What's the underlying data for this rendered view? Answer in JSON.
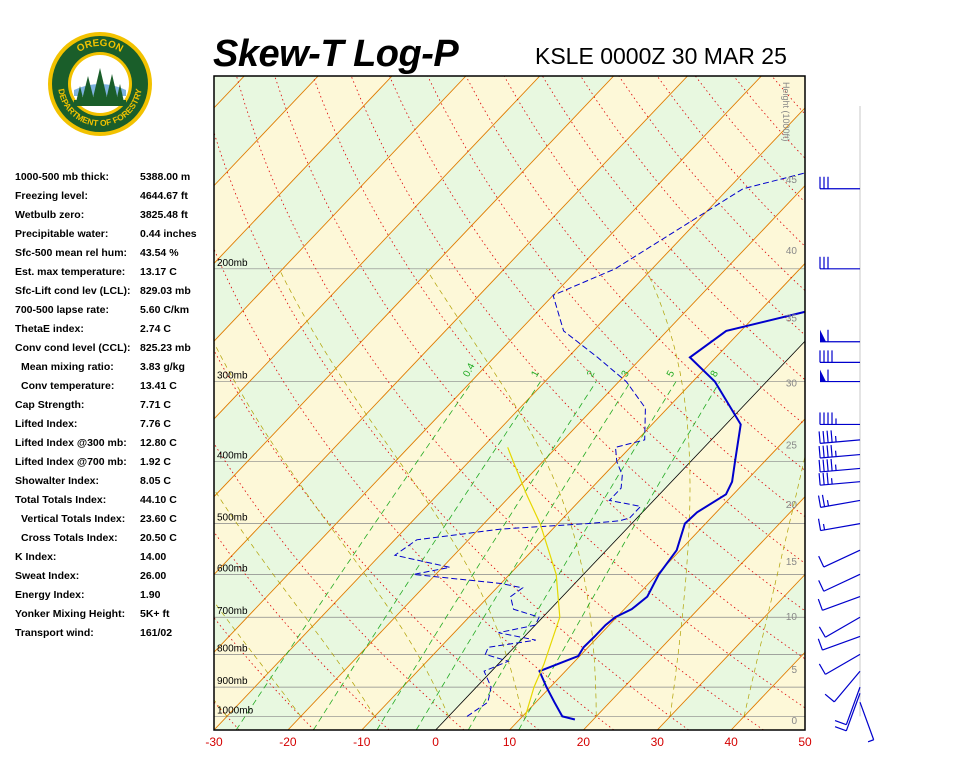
{
  "header": {
    "title": "Skew-T Log-P",
    "station_line": "KSLE 0000Z 30 MAR 25"
  },
  "logo": {
    "top_text": "OREGON",
    "bottom_text": "DEPARTMENT OF FORESTRY",
    "ring_color": "#1a5e2a",
    "accent_color": "#f2c200"
  },
  "indices": [
    {
      "label": "1000-500 mb thick:",
      "value": "5388.00 m"
    },
    {
      "label": "Freezing level:",
      "value": "4644.67 ft"
    },
    {
      "label": "Wetbulb zero:",
      "value": "3825.48 ft"
    },
    {
      "label": "Precipitable water:",
      "value": "0.44 inches"
    },
    {
      "label": "Sfc-500 mean rel hum:",
      "value": "43.54 %"
    },
    {
      "label": "Est. max temperature:",
      "value": "13.17 C"
    },
    {
      "label": "Sfc-Lift cond lev (LCL):",
      "value": "829.03 mb"
    },
    {
      "label": "700-500 lapse rate:",
      "value": "5.60 C/km"
    },
    {
      "label": "ThetaE index:",
      "value": "2.74 C"
    },
    {
      "label": "Conv cond level (CCL):",
      "value": "825.23 mb"
    },
    {
      "label": "Mean mixing ratio:",
      "value": "3.83 g/kg",
      "indent": true
    },
    {
      "label": "Conv temperature:",
      "value": "13.41 C",
      "indent": true
    },
    {
      "label": "Cap Strength:",
      "value": "7.71 C"
    },
    {
      "label": "Lifted Index:",
      "value": "7.76 C"
    },
    {
      "label": "Lifted Index @300 mb:",
      "value": "12.80 C"
    },
    {
      "label": "Lifted Index @700 mb:",
      "value": "1.92 C"
    },
    {
      "label": "Showalter Index:",
      "value": "8.05 C"
    },
    {
      "label": "Total Totals Index:",
      "value": "44.10 C"
    },
    {
      "label": "Vertical Totals Index:",
      "value": "23.60 C",
      "indent": true
    },
    {
      "label": "Cross Totals Index:",
      "value": "20.50 C",
      "indent": true
    },
    {
      "label": "K Index:",
      "value": "14.00"
    },
    {
      "label": "Sweat Index:",
      "value": "26.00"
    },
    {
      "label": "Energy Index:",
      "value": "1.90"
    },
    {
      "label": "Yonker Mixing Height:",
      "value": "5K+ ft"
    },
    {
      "label": "Transport wind:",
      "value": "161/02"
    }
  ],
  "chart_data": {
    "type": "line",
    "title": "Skew-T Log-P",
    "xlabel": "",
    "ylabel": "",
    "x_unit": "C",
    "xlim": [
      -30,
      50
    ],
    "ylim_pressure_mb": [
      1050,
      100
    ],
    "x_ticks": [
      -30,
      -20,
      -10,
      0,
      10,
      20,
      30,
      40,
      50
    ],
    "pressure_levels": [
      1000,
      900,
      800,
      700,
      600,
      500,
      400,
      300,
      200
    ],
    "pressure_level_labels": [
      "1000mb",
      "900mb",
      "800mb",
      "700mb",
      "600mb",
      "500mb",
      "400mb",
      "300mb",
      "200mb"
    ],
    "height_axis_label": "Height (1000ft)",
    "height_ticks_kft": [
      0,
      5,
      10,
      15,
      20,
      25,
      30,
      35,
      40,
      45,
      50
    ],
    "mixing_ratio_labels": [
      "0.4",
      "1",
      "2",
      "3",
      "5",
      "8"
    ],
    "mixing_ratio_values_gkg": [
      0.4,
      1,
      2,
      3,
      5,
      8
    ],
    "grid": true,
    "colors": {
      "temperature": "#0000cc",
      "dewpoint": "#0000cc",
      "parcel": "#e6d800",
      "isotherm": "#e07b00",
      "dry_adiabat": "#dd0000",
      "moist_adiabat": "#b0a000",
      "mixing_ratio": "#22aa22",
      "isobar": "#888888",
      "zero_isotherm": "#000000",
      "band_a": "#e8f8e0",
      "band_b": "#fdf8d8",
      "tick_label": "#d40000"
    },
    "series": [
      {
        "name": "",
        "kind": "temperature",
        "points": [
          [
            1011,
            17.5
          ],
          [
            1000,
            15.4
          ],
          [
            950,
            12.5
          ],
          [
            900,
            9.5
          ],
          [
            850,
            6.5
          ],
          [
            805,
            9.8
          ],
          [
            780,
            9.4
          ],
          [
            750,
            9.5
          ],
          [
            720,
            9.5
          ],
          [
            700,
            9.8
          ],
          [
            680,
            11.0
          ],
          [
            650,
            11.5
          ],
          [
            600,
            10.2
          ],
          [
            550,
            9.5
          ],
          [
            500,
            7.2
          ],
          [
            480,
            7.4
          ],
          [
            450,
            9.0
          ],
          [
            430,
            8.2
          ],
          [
            400,
            6.0
          ],
          [
            350,
            2.0
          ],
          [
            300,
            -7.0
          ],
          [
            275,
            -13.5
          ],
          [
            250,
            -12.0
          ],
          [
            230,
            -2.0
          ],
          [
            200,
            5.0
          ],
          [
            150,
            25.0
          ],
          [
            135,
            32.0
          ]
        ]
      },
      {
        "name": "",
        "kind": "dewpoint",
        "points": [
          [
            1000,
            2.5
          ],
          [
            950,
            3.5
          ],
          [
            900,
            2.0
          ],
          [
            850,
            -1.0
          ],
          [
            820,
            1.0
          ],
          [
            800,
            -3.0
          ],
          [
            780,
            -3.5
          ],
          [
            760,
            2.0
          ],
          [
            740,
            -4.0
          ],
          [
            720,
            0.0
          ],
          [
            700,
            -0.5
          ],
          [
            680,
            -5.0
          ],
          [
            650,
            -7.0
          ],
          [
            630,
            -6.5
          ],
          [
            620,
            -10.0
          ],
          [
            600,
            -23.0
          ],
          [
            585,
            -19.0
          ],
          [
            560,
            -28.0
          ],
          [
            530,
            -27.0
          ],
          [
            510,
            -17.0
          ],
          [
            500,
            -6.0
          ],
          [
            495,
            -2.0
          ],
          [
            490,
            -1.0
          ],
          [
            470,
            -1.0
          ],
          [
            460,
            -6.0
          ],
          [
            440,
            -6.0
          ],
          [
            420,
            -7.5
          ],
          [
            400,
            -10.0
          ],
          [
            380,
            -12.0
          ],
          [
            370,
            -9.0
          ],
          [
            330,
            -13.0
          ],
          [
            300,
            -19.0
          ],
          [
            275,
            -26.0
          ],
          [
            250,
            -34.0
          ],
          [
            220,
            -40.0
          ],
          [
            200,
            -35.0
          ],
          [
            150,
            -28.0
          ],
          [
            130,
            -12.0
          ]
        ]
      },
      {
        "name": "",
        "kind": "parcel",
        "points": [
          [
            1000,
            10.4
          ],
          [
            900,
            7.8
          ],
          [
            829,
            6.2
          ],
          [
            700,
            2.3
          ],
          [
            600,
            -3.7
          ],
          [
            500,
            -12.4
          ],
          [
            450,
            -18.0
          ],
          [
            400,
            -24.0
          ],
          [
            380,
            -26.6
          ]
        ]
      }
    ],
    "wind_barbs": [
      {
        "pressure_mb": 950,
        "direction_deg": 160,
        "speed_kt": 5
      },
      {
        "pressure_mb": 920,
        "direction_deg": 200,
        "speed_kt": 10
      },
      {
        "pressure_mb": 900,
        "direction_deg": 200,
        "speed_kt": 10
      },
      {
        "pressure_mb": 850,
        "direction_deg": 220,
        "speed_kt": 10
      },
      {
        "pressure_mb": 800,
        "direction_deg": 240,
        "speed_kt": 10
      },
      {
        "pressure_mb": 750,
        "direction_deg": 250,
        "speed_kt": 10
      },
      {
        "pressure_mb": 700,
        "direction_deg": 240,
        "speed_kt": 10
      },
      {
        "pressure_mb": 650,
        "direction_deg": 250,
        "speed_kt": 10
      },
      {
        "pressure_mb": 600,
        "direction_deg": 245,
        "speed_kt": 10
      },
      {
        "pressure_mb": 550,
        "direction_deg": 245,
        "speed_kt": 10
      },
      {
        "pressure_mb": 500,
        "direction_deg": 260,
        "speed_kt": 15
      },
      {
        "pressure_mb": 460,
        "direction_deg": 260,
        "speed_kt": 25
      },
      {
        "pressure_mb": 430,
        "direction_deg": 265,
        "speed_kt": 35
      },
      {
        "pressure_mb": 410,
        "direction_deg": 265,
        "speed_kt": 45
      },
      {
        "pressure_mb": 390,
        "direction_deg": 265,
        "speed_kt": 45
      },
      {
        "pressure_mb": 370,
        "direction_deg": 265,
        "speed_kt": 45
      },
      {
        "pressure_mb": 350,
        "direction_deg": 270,
        "speed_kt": 45
      },
      {
        "pressure_mb": 300,
        "direction_deg": 270,
        "speed_kt": 60
      },
      {
        "pressure_mb": 280,
        "direction_deg": 270,
        "speed_kt": 40
      },
      {
        "pressure_mb": 260,
        "direction_deg": 270,
        "speed_kt": 60
      },
      {
        "pressure_mb": 200,
        "direction_deg": 270,
        "speed_kt": 30
      },
      {
        "pressure_mb": 150,
        "direction_deg": 270,
        "speed_kt": 30
      }
    ]
  }
}
